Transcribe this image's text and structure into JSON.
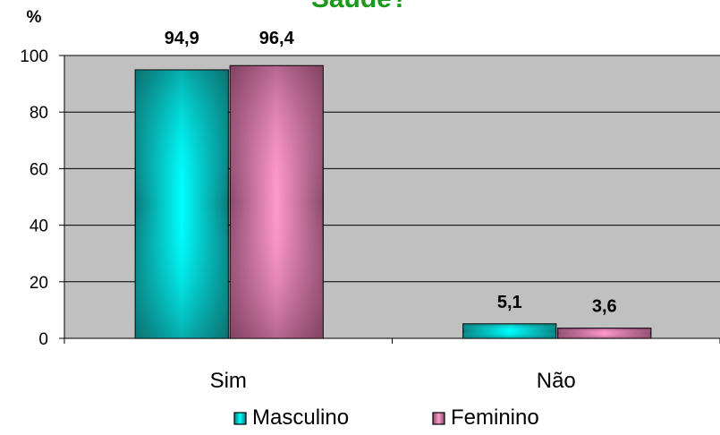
{
  "chart_data": {
    "type": "bar",
    "title": "Saúde?",
    "ylabel": "%",
    "categories": [
      "Sim",
      "Não"
    ],
    "series": [
      {
        "name": "Masculino",
        "values": [
          94.9,
          5.1
        ],
        "labels": [
          "94,9",
          "5,1"
        ],
        "color": "#16a3a3"
      },
      {
        "name": "Feminino",
        "values": [
          96.4,
          3.6
        ],
        "labels": [
          "96,4",
          "3,6"
        ],
        "color": "#b0668a"
      }
    ],
    "ylim": [
      0,
      100
    ],
    "yticks": [
      0,
      20,
      40,
      60,
      80,
      100
    ],
    "grid": true,
    "legend": "bottom",
    "plot_background": "#c0c0c0"
  }
}
